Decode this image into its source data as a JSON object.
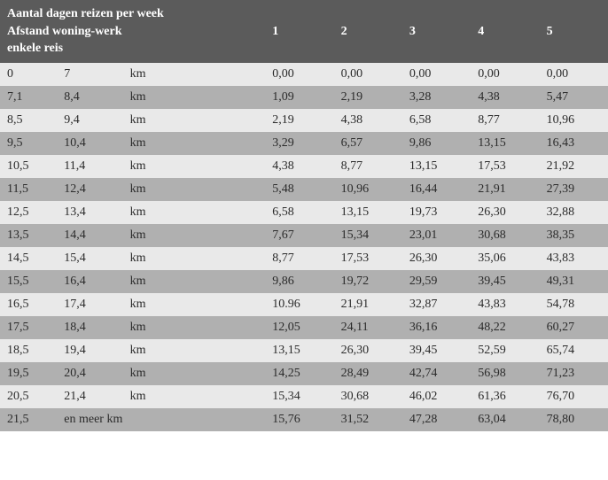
{
  "header": {
    "line1": "Aantal dagen reizen per week",
    "line2": "Afstand woning-werk",
    "line3": "enkele reis",
    "day_cols": [
      "1",
      "2",
      "3",
      "4",
      "5"
    ]
  },
  "unit_label": "km",
  "last_row_to_label": "en meer km",
  "rows": [
    {
      "from": "0",
      "to": "7",
      "v": [
        "0,00",
        "0,00",
        "0,00",
        "0,00",
        "0,00"
      ]
    },
    {
      "from": "7,1",
      "to": "8,4",
      "v": [
        "1,09",
        "2,19",
        "3,28",
        "4,38",
        "5,47"
      ]
    },
    {
      "from": "8,5",
      "to": "9,4",
      "v": [
        "2,19",
        "4,38",
        "6,58",
        "8,77",
        "10,96"
      ]
    },
    {
      "from": "9,5",
      "to": "10,4",
      "v": [
        "3,29",
        "6,57",
        "9,86",
        "13,15",
        "16,43"
      ]
    },
    {
      "from": "10,5",
      "to": "11,4",
      "v": [
        "4,38",
        "8,77",
        "13,15",
        "17,53",
        "21,92"
      ]
    },
    {
      "from": "11,5",
      "to": "12,4",
      "v": [
        "5,48",
        "10,96",
        "16,44",
        "21,91",
        "27,39"
      ]
    },
    {
      "from": "12,5",
      "to": "13,4",
      "v": [
        "6,58",
        "13,15",
        "19,73",
        "26,30",
        "32,88"
      ]
    },
    {
      "from": "13,5",
      "to": "14,4",
      "v": [
        "7,67",
        "15,34",
        "23,01",
        "30,68",
        "38,35"
      ]
    },
    {
      "from": "14,5",
      "to": "15,4",
      "v": [
        "8,77",
        "17,53",
        "26,30",
        "35,06",
        "43,83"
      ]
    },
    {
      "from": "15,5",
      "to": "16,4",
      "v": [
        "9,86",
        "19,72",
        "29,59",
        "39,45",
        "49,31"
      ]
    },
    {
      "from": "16,5",
      "to": "17,4",
      "v": [
        "10.96",
        "21,91",
        "32,87",
        "43,83",
        "54,78"
      ]
    },
    {
      "from": "17,5",
      "to": "18,4",
      "v": [
        "12,05",
        "24,11",
        "36,16",
        "48,22",
        "60,27"
      ]
    },
    {
      "from": "18,5",
      "to": "19,4",
      "v": [
        "13,15",
        "26,30",
        "39,45",
        "52,59",
        "65,74"
      ]
    },
    {
      "from": "19,5",
      "to": "20,4",
      "v": [
        "14,25",
        "28,49",
        "42,74",
        "56,98",
        "71,23"
      ]
    },
    {
      "from": "20,5",
      "to": "21,4",
      "v": [
        "15,34",
        "30,68",
        "46,02",
        "61,36",
        "76,70"
      ]
    },
    {
      "from": "21,5",
      "to": null,
      "v": [
        "15,76",
        "31,52",
        "47,28",
        "63,04",
        "78,80"
      ]
    }
  ]
}
